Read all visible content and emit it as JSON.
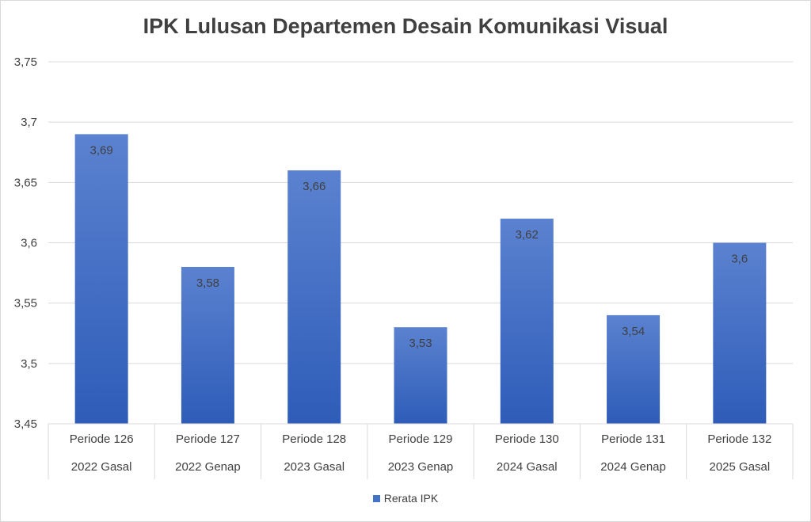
{
  "chart_data": {
    "type": "bar",
    "title": "IPK Lulusan Departemen Desain Komunikasi Visual",
    "categories": [
      [
        "Periode 126",
        "2022 Gasal"
      ],
      [
        "Periode 127",
        "2022 Genap"
      ],
      [
        "Periode 128",
        "2023 Gasal"
      ],
      [
        "Periode 129",
        "2023 Genap"
      ],
      [
        "Periode 130",
        "2024 Gasal"
      ],
      [
        "Periode 131",
        "2024 Genap"
      ],
      [
        "Periode 132",
        "2025 Gasal"
      ]
    ],
    "series": [
      {
        "name": "Rerata IPK",
        "values": [
          3.69,
          3.58,
          3.66,
          3.53,
          3.62,
          3.54,
          3.6
        ],
        "value_labels": [
          "3,69",
          "3,58",
          "3,66",
          "3,53",
          "3,62",
          "3,54",
          "3,6"
        ],
        "color": "#4472c4"
      }
    ],
    "ylim": [
      3.45,
      3.75
    ],
    "yticks": [
      3.45,
      3.5,
      3.55,
      3.6,
      3.65,
      3.7,
      3.75
    ],
    "ytick_labels": [
      "3,45",
      "3,5",
      "3,55",
      "3,6",
      "3,65",
      "3,7",
      "3,75"
    ],
    "grid": true,
    "legend_position": "bottom",
    "xlabel": "",
    "ylabel": ""
  }
}
